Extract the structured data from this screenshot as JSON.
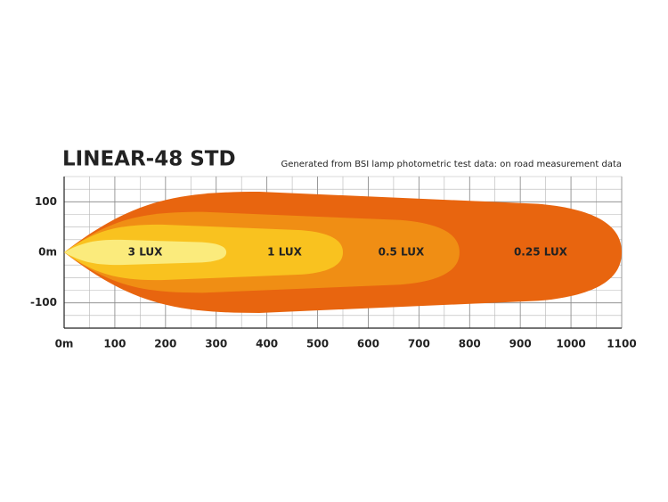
{
  "chart_data": {
    "type": "beam",
    "title": "LINEAR-48 STD",
    "subtitle": "Generated from BSI lamp photometric test data: on road measurement data",
    "xlim": [
      0,
      1100
    ],
    "xticks": [
      {
        "value": 0,
        "label": "0m"
      },
      100,
      200,
      300,
      400,
      500,
      600,
      700,
      800,
      900,
      1000,
      1100
    ],
    "ylim": [
      -150,
      150
    ],
    "yticks": [
      -100,
      {
        "value": 0,
        "label": "0m"
      },
      100
    ],
    "grid": true,
    "series": [
      {
        "name": "0.25 LUX",
        "color": "#e8650f",
        "reach": 1100,
        "width": 120
      },
      {
        "name": "0.5 LUX",
        "color": "#f08e14",
        "reach": 780,
        "width": 80
      },
      {
        "name": "1 LUX",
        "color": "#f9c21f",
        "reach": 550,
        "width": 55
      },
      {
        "name": "3 LUX",
        "color": "#fbeb7c",
        "reach": 320,
        "width": 25
      }
    ]
  }
}
